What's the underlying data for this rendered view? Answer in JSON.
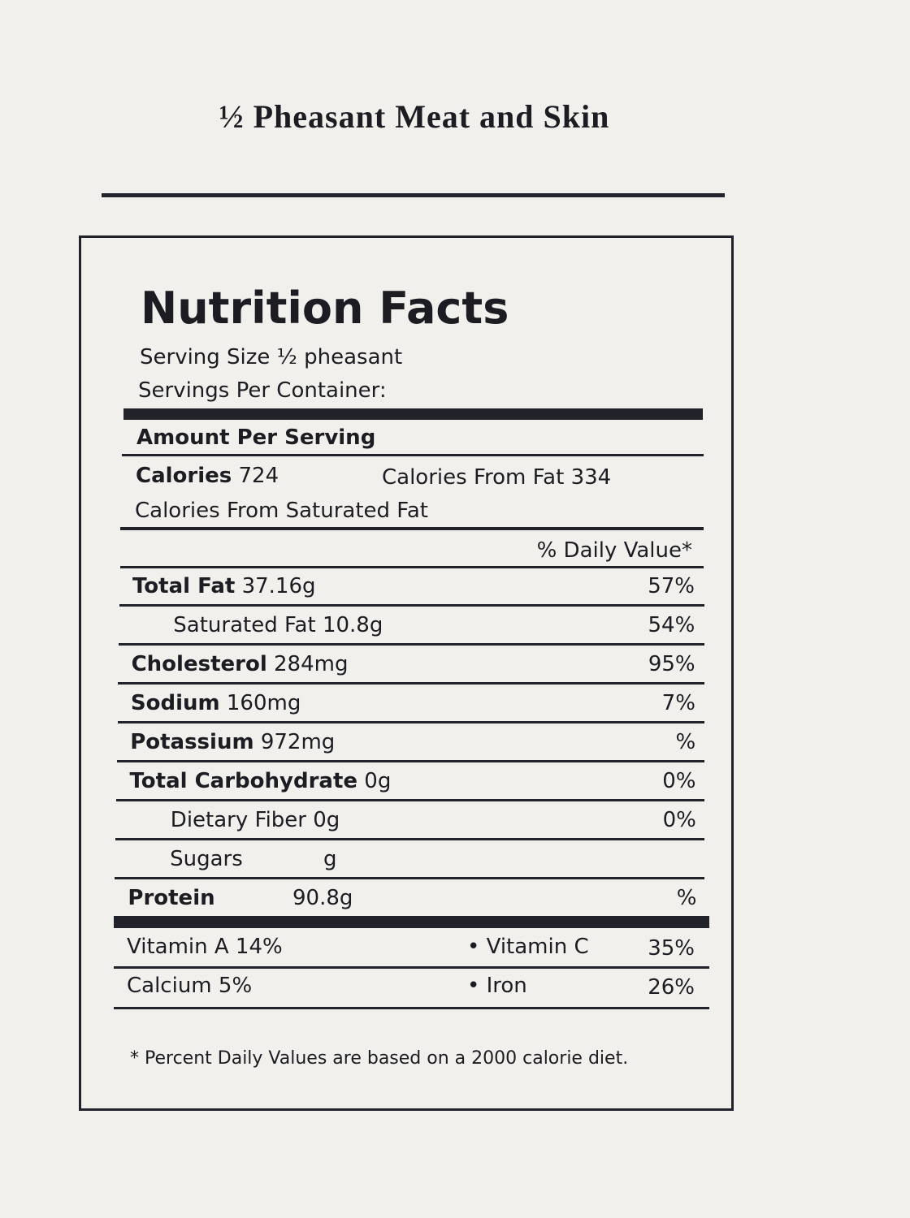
{
  "title": "½ Pheasant Meat and Skin",
  "label": {
    "heading": "Nutrition Facts",
    "serving_size": "Serving Size  ½ pheasant",
    "servings_per_container": "Servings Per Container:",
    "amount_per_serving": "Amount Per Serving",
    "calories": {
      "name": "Calories",
      "amount": "724"
    },
    "calories_from_fat": "Calories From Fat 334",
    "calories_from_saturated_fat": "Calories From Saturated Fat",
    "daily_value_header": "% Daily Value*",
    "rows": [
      {
        "name": "Total Fat",
        "amount": "37.16g",
        "percent": "57%"
      },
      {
        "name": "Saturated Fat",
        "amount": "10.8g",
        "percent": "54%"
      },
      {
        "name": "Cholesterol",
        "amount": "284mg",
        "percent": "95%"
      },
      {
        "name": "Sodium",
        "amount": "160mg",
        "percent": "7%"
      },
      {
        "name": "Potassium",
        "amount": "972mg",
        "percent": "%"
      },
      {
        "name": "Total Carbohydrate",
        "amount": "0g",
        "percent": "0%"
      },
      {
        "name": "Dietary Fiber",
        "amount": "0g",
        "percent": "0%"
      },
      {
        "name": "Sugars",
        "amount": "g"
      },
      {
        "name": "Protein",
        "amount": "90.8g",
        "percent": "%"
      }
    ],
    "vitamins": [
      [
        "Vitamin A 14%",
        "• Vitamin C",
        "35%"
      ],
      [
        "Calcium 5%",
        "• Iron",
        "26%"
      ]
    ],
    "footnote": "* Percent Daily Values are based on a 2000 calorie diet."
  }
}
